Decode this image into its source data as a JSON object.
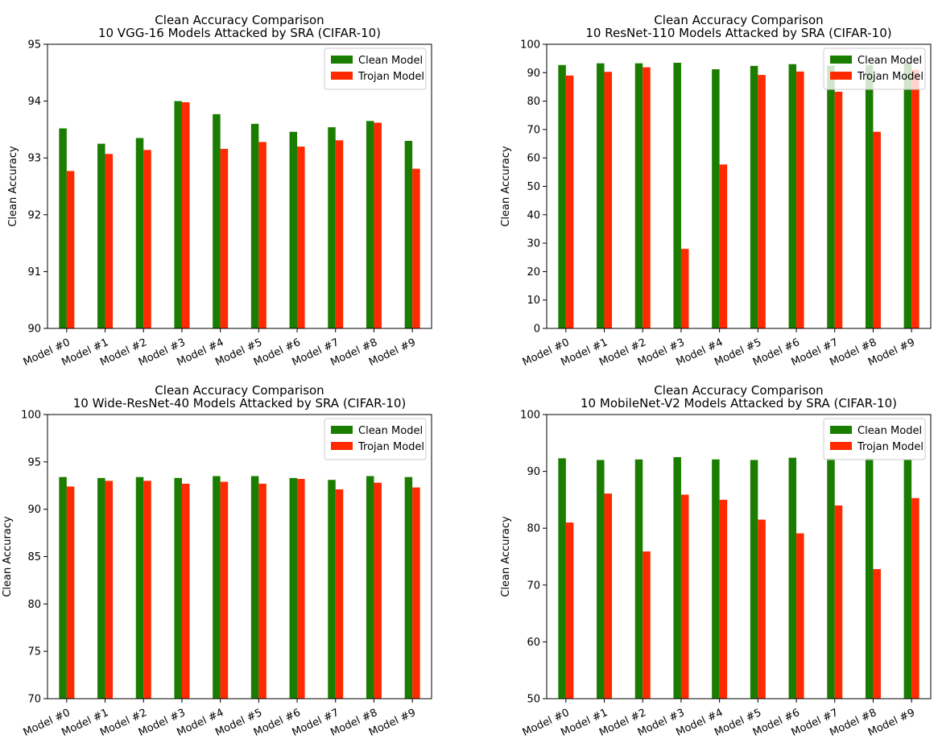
{
  "figure": {
    "legend_labels": [
      "Clean Model",
      "Trojan Model"
    ],
    "colors": {
      "clean": "#1a7d00",
      "trojan": "#ff2a00"
    }
  },
  "chart_data": [
    {
      "type": "bar",
      "title": "Clean Accuracy Comparison",
      "subtitle": "10 VGG-16 Models Attacked by SRA (CIFAR-10)",
      "xlabel": "",
      "ylabel": "Clean Accuracy",
      "ylim": [
        90,
        95
      ],
      "yticks": [
        90,
        91,
        92,
        93,
        94,
        95
      ],
      "categories": [
        "Model #0",
        "Model #1",
        "Model #2",
        "Model #3",
        "Model #4",
        "Model #5",
        "Model #6",
        "Model #7",
        "Model #8",
        "Model #9"
      ],
      "series": [
        {
          "name": "Clean Model",
          "values": [
            93.52,
            93.25,
            93.35,
            94.0,
            93.77,
            93.6,
            93.46,
            93.54,
            93.65,
            93.3
          ]
        },
        {
          "name": "Trojan Model",
          "values": [
            92.77,
            93.07,
            93.14,
            93.98,
            93.16,
            93.28,
            93.2,
            93.31,
            93.62,
            92.81
          ]
        }
      ],
      "legend": "top-right",
      "grid": false
    },
    {
      "type": "bar",
      "title": "Clean Accuracy Comparison",
      "subtitle": "10 ResNet-110 Models Attacked by SRA (CIFAR-10)",
      "xlabel": "",
      "ylabel": "Clean Accuracy",
      "ylim": [
        0,
        100
      ],
      "yticks": [
        0,
        10,
        20,
        30,
        40,
        50,
        60,
        70,
        80,
        90,
        100
      ],
      "categories": [
        "Model #0",
        "Model #1",
        "Model #2",
        "Model #3",
        "Model #4",
        "Model #5",
        "Model #6",
        "Model #7",
        "Model #8",
        "Model #9"
      ],
      "series": [
        {
          "name": "Clean Model",
          "values": [
            92.7,
            93.3,
            93.3,
            93.5,
            91.2,
            92.4,
            93.0,
            92.5,
            92.7,
            93.6
          ]
        },
        {
          "name": "Trojan Model",
          "values": [
            89.0,
            90.3,
            91.9,
            28.0,
            57.7,
            89.2,
            90.4,
            83.3,
            69.2,
            91.0
          ]
        }
      ],
      "legend": "top-right",
      "grid": false
    },
    {
      "type": "bar",
      "title": "Clean Accuracy Comparison",
      "subtitle": "10 Wide-ResNet-40 Models Attacked by SRA (CIFAR-10)",
      "xlabel": "",
      "ylabel": "Clean Accuracy",
      "ylim": [
        70,
        100
      ],
      "yticks": [
        70,
        75,
        80,
        85,
        90,
        95,
        100
      ],
      "categories": [
        "Model #0",
        "Model #1",
        "Model #2",
        "Model #3",
        "Model #4",
        "Model #5",
        "Model #6",
        "Model #7",
        "Model #8",
        "Model #9"
      ],
      "series": [
        {
          "name": "Clean Model",
          "values": [
            93.4,
            93.3,
            93.4,
            93.3,
            93.5,
            93.5,
            93.3,
            93.1,
            93.5,
            93.4
          ]
        },
        {
          "name": "Trojan Model",
          "values": [
            92.4,
            93.0,
            93.0,
            92.7,
            92.9,
            92.7,
            93.2,
            92.1,
            92.8,
            92.3
          ]
        }
      ],
      "legend": "top-right",
      "grid": false
    },
    {
      "type": "bar",
      "title": "Clean Accuracy Comparison",
      "subtitle": "10 MobileNet-V2 Models Attacked by SRA (CIFAR-10)",
      "xlabel": "",
      "ylabel": "Clean Accuracy",
      "ylim": [
        50,
        100
      ],
      "yticks": [
        50,
        60,
        70,
        80,
        90,
        100
      ],
      "categories": [
        "Model #0",
        "Model #1",
        "Model #2",
        "Model #3",
        "Model #4",
        "Model #5",
        "Model #6",
        "Model #7",
        "Model #8",
        "Model #9"
      ],
      "series": [
        {
          "name": "Clean Model",
          "values": [
            92.3,
            92.0,
            92.1,
            92.5,
            92.1,
            92.0,
            92.4,
            92.3,
            92.3,
            92.0
          ]
        },
        {
          "name": "Trojan Model",
          "values": [
            81.0,
            86.1,
            75.9,
            85.9,
            85.0,
            81.5,
            79.1,
            84.0,
            72.8,
            85.3
          ]
        }
      ],
      "legend": "top-right",
      "grid": false
    }
  ]
}
